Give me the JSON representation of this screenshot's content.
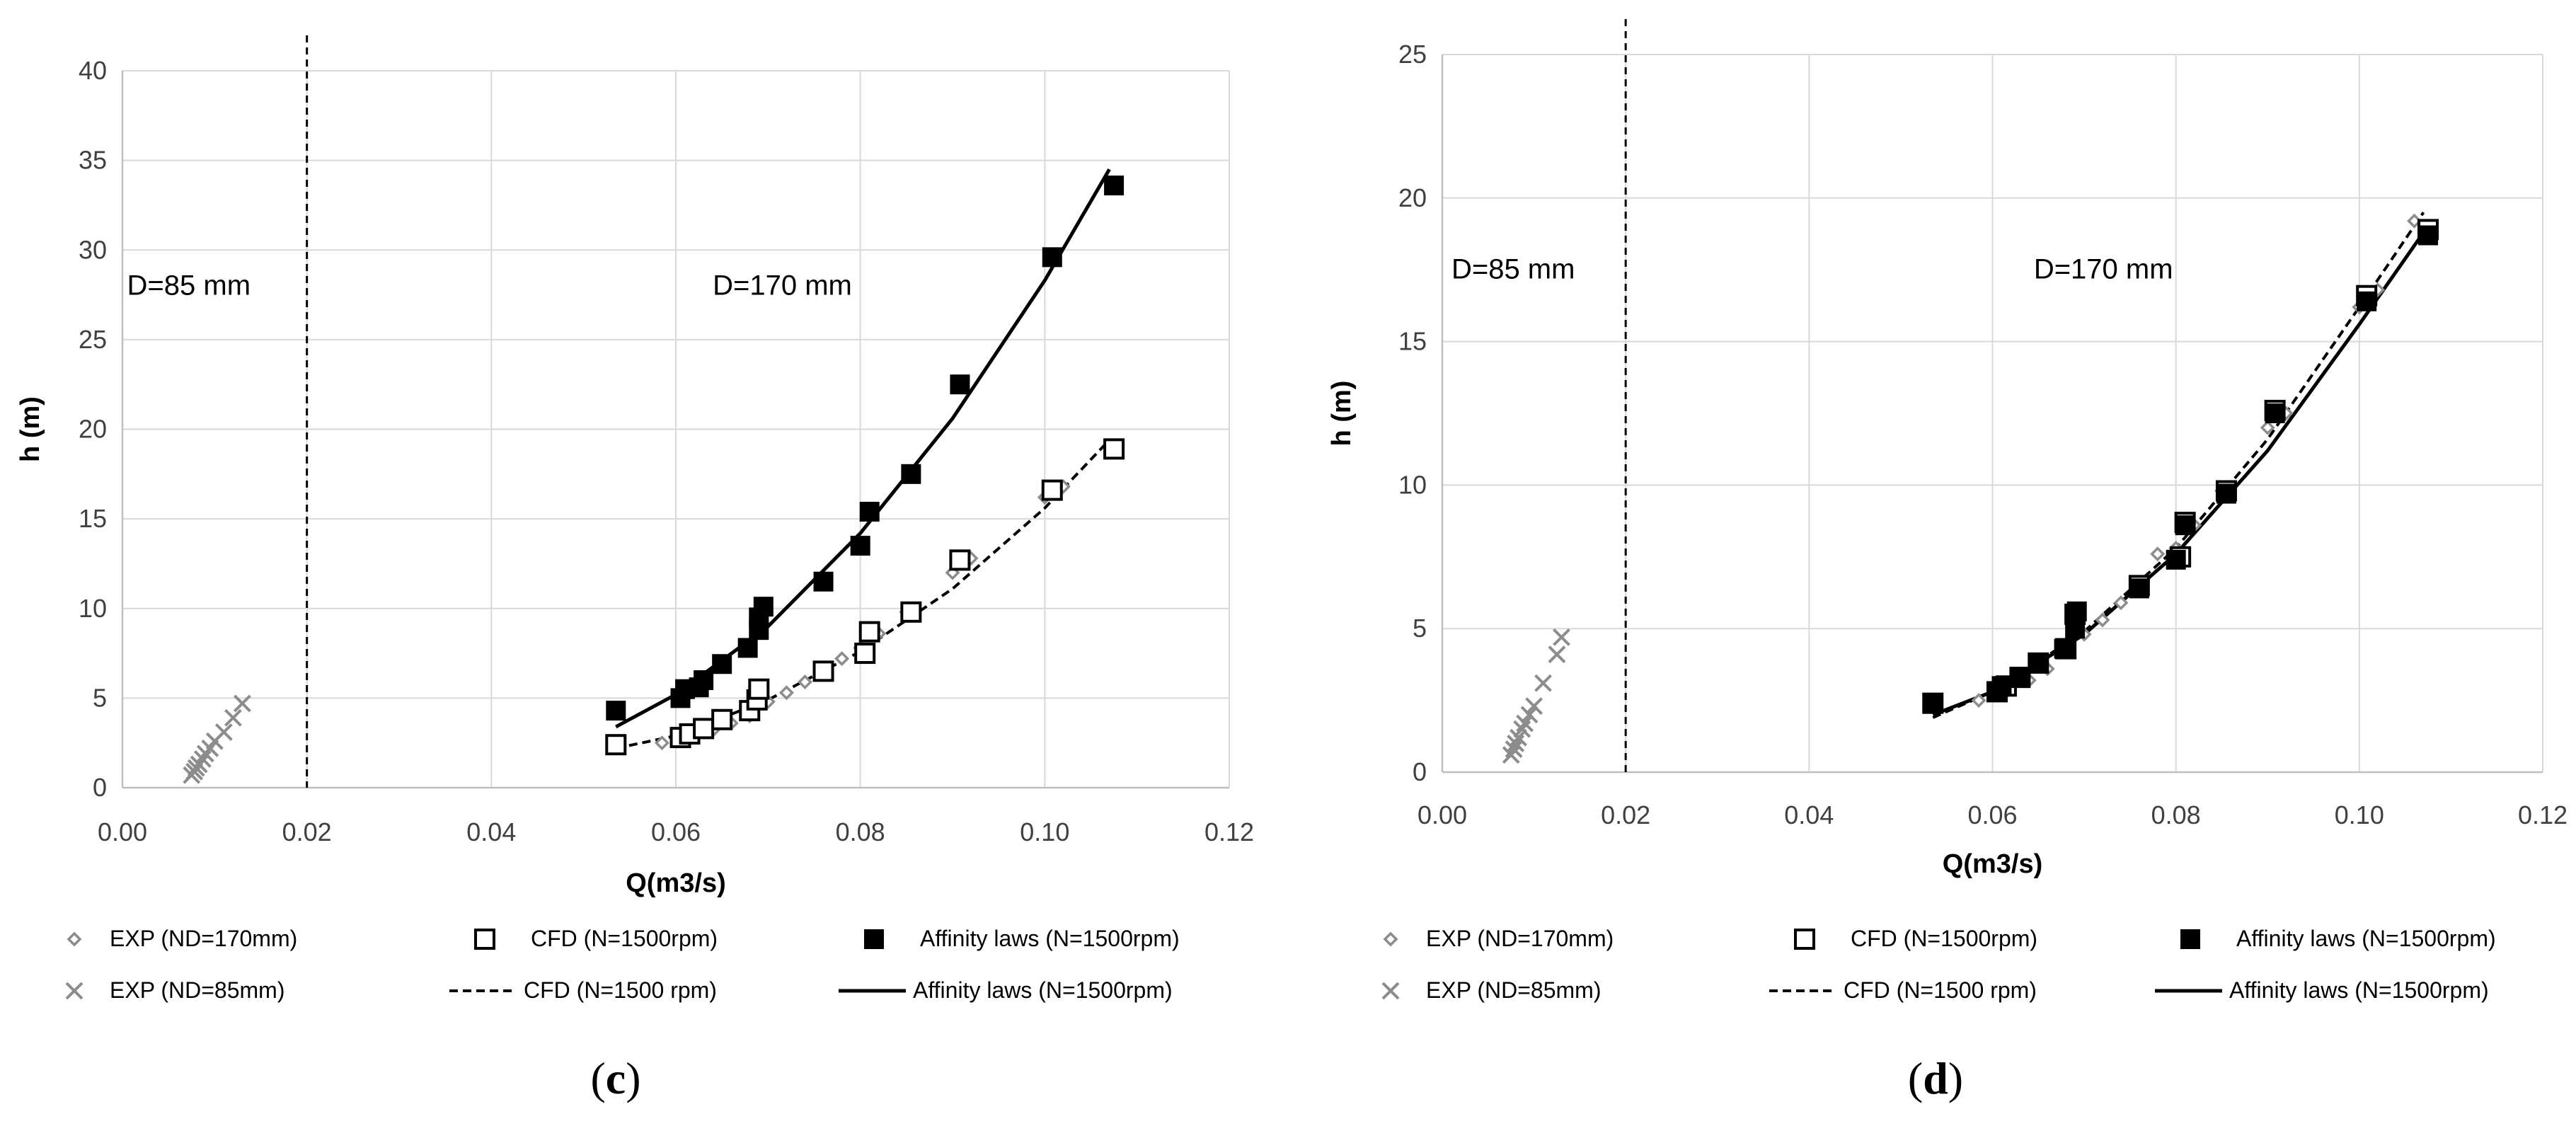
{
  "chart_data": [
    {
      "type": "scatter",
      "panel_label": "c",
      "xlabel": "Q(m3/s)",
      "ylabel": "h (m)",
      "xlim": [
        0,
        0.12
      ],
      "ylim": [
        0,
        40
      ],
      "xticks": [
        "0.00",
        "0.02",
        "0.04",
        "0.06",
        "0.08",
        "0.10",
        "0.12"
      ],
      "yticks": [
        "0",
        "5",
        "10",
        "15",
        "20",
        "25",
        "30",
        "35",
        "40"
      ],
      "vline_x": 0.02,
      "annotations": [
        {
          "text": "D=85 mm",
          "x": 0.0005,
          "y": 27.5
        },
        {
          "text": "D=170 mm",
          "x": 0.064,
          "y": 27.5
        }
      ],
      "series": [
        {
          "name": "EXP (ND=170mm)",
          "marker": "diamond",
          "x": [
            0.0585,
            0.0615,
            0.064,
            0.066,
            0.068,
            0.07,
            0.072,
            0.074,
            0.076,
            0.078,
            0.08,
            0.082,
            0.085,
            0.09,
            0.092,
            0.1,
            0.102
          ],
          "y": [
            2.5,
            2.8,
            3.2,
            3.6,
            4.0,
            4.8,
            5.3,
            5.9,
            6.5,
            7.2,
            7.8,
            8.6,
            9.8,
            12.0,
            12.8,
            16.2,
            16.8
          ]
        },
        {
          "name": "CFD (N=1500rpm)",
          "marker": "open-square",
          "x": [
            0.0535,
            0.0605,
            0.0615,
            0.063,
            0.065,
            0.068,
            0.0688,
            0.069,
            0.076,
            0.0805,
            0.081,
            0.0855,
            0.0908,
            0.1008,
            0.1075
          ],
          "y": [
            2.4,
            2.8,
            3.0,
            3.3,
            3.8,
            4.3,
            4.9,
            5.5,
            6.5,
            7.5,
            8.7,
            9.8,
            12.7,
            16.6,
            18.9
          ]
        },
        {
          "name": "Affinity laws (N=1500rpm)",
          "marker": "filled-square",
          "x": [
            0.0535,
            0.0605,
            0.061,
            0.0625,
            0.063,
            0.065,
            0.0678,
            0.069,
            0.069,
            0.0695,
            0.076,
            0.08,
            0.081,
            0.0855,
            0.0908,
            0.1008,
            0.1075
          ],
          "y": [
            4.3,
            5.0,
            5.5,
            5.6,
            6.0,
            6.9,
            7.8,
            8.8,
            9.5,
            10.1,
            11.5,
            13.5,
            15.4,
            17.5,
            22.5,
            29.6,
            33.6
          ]
        },
        {
          "name": "EXP (ND=85mm)",
          "marker": "x",
          "x": [
            0.0075,
            0.0078,
            0.008,
            0.0083,
            0.0087,
            0.009,
            0.0095,
            0.01,
            0.011,
            0.012,
            0.013
          ],
          "y": [
            0.7,
            0.9,
            1.1,
            1.3,
            1.6,
            1.9,
            2.2,
            2.6,
            3.1,
            3.9,
            4.7
          ]
        },
        {
          "name": "CFD (N=1500 rpm)",
          "line": "dashed",
          "x": [
            0.0535,
            0.06,
            0.07,
            0.08,
            0.09,
            0.1,
            0.107
          ],
          "y": [
            2.2,
            2.9,
            4.9,
            7.6,
            11.1,
            15.6,
            19.4
          ]
        },
        {
          "name": "Affinity laws (N=1500rpm)",
          "line": "solid",
          "x": [
            0.0535,
            0.06,
            0.07,
            0.08,
            0.09,
            0.1,
            0.107
          ],
          "y": [
            3.4,
            5.2,
            9.0,
            14.2,
            20.6,
            28.3,
            34.5
          ]
        }
      ]
    },
    {
      "type": "scatter",
      "panel_label": "d",
      "xlabel": "Q(m3/s)",
      "ylabel": "h (m)",
      "xlim": [
        0,
        0.12
      ],
      "ylim": [
        0,
        25
      ],
      "xticks": [
        "0.00",
        "0.02",
        "0.04",
        "0.06",
        "0.08",
        "0.10",
        "0.12"
      ],
      "yticks": [
        "0",
        "5",
        "10",
        "15",
        "20",
        "25"
      ],
      "vline_x": 0.02,
      "annotations": [
        {
          "text": "D=85 mm",
          "x": 0.001,
          "y": 17.2
        },
        {
          "text": "D=170 mm",
          "x": 0.0645,
          "y": 17.2
        }
      ],
      "series": [
        {
          "name": "EXP (ND=170mm)",
          "marker": "diamond",
          "x": [
            0.0585,
            0.0615,
            0.064,
            0.066,
            0.068,
            0.07,
            0.072,
            0.074,
            0.076,
            0.078,
            0.08,
            0.082,
            0.085,
            0.09,
            0.092,
            0.1,
            0.102,
            0.106
          ],
          "y": [
            2.5,
            2.8,
            3.2,
            3.6,
            4.4,
            4.8,
            5.3,
            5.9,
            6.5,
            7.6,
            7.8,
            8.6,
            9.8,
            12.0,
            12.5,
            16.2,
            16.8,
            19.2
          ]
        },
        {
          "name": "CFD (N=1500rpm)",
          "marker": "open-square",
          "x": [
            0.0535,
            0.0605,
            0.0615,
            0.063,
            0.065,
            0.068,
            0.069,
            0.076,
            0.0805,
            0.081,
            0.0855,
            0.0908,
            0.1008,
            0.1075
          ],
          "y": [
            2.4,
            2.8,
            3.0,
            3.3,
            3.8,
            4.3,
            5.5,
            6.5,
            7.5,
            8.7,
            9.8,
            12.6,
            16.6,
            18.9
          ]
        },
        {
          "name": "Affinity laws (N=1500rpm)",
          "marker": "filled-square",
          "x": [
            0.0535,
            0.0605,
            0.061,
            0.063,
            0.065,
            0.0678,
            0.069,
            0.0692,
            0.076,
            0.08,
            0.081,
            0.0855,
            0.0908,
            0.1008,
            0.1075
          ],
          "y": [
            2.4,
            2.8,
            3.0,
            3.3,
            3.8,
            4.3,
            5.0,
            5.6,
            6.4,
            7.4,
            8.6,
            9.7,
            12.5,
            16.4,
            18.7
          ]
        },
        {
          "name": "EXP (ND=85mm)",
          "marker": "x",
          "x": [
            0.0075,
            0.0078,
            0.008,
            0.0083,
            0.0087,
            0.009,
            0.0095,
            0.01,
            0.011,
            0.0125,
            0.013
          ],
          "y": [
            0.6,
            0.8,
            1.0,
            1.2,
            1.5,
            1.7,
            2.0,
            2.3,
            3.1,
            4.1,
            4.7
          ]
        },
        {
          "name": "CFD (N=1500 rpm)",
          "line": "dashed",
          "x": [
            0.0535,
            0.06,
            0.07,
            0.08,
            0.09,
            0.1,
            0.107
          ],
          "y": [
            1.9,
            2.8,
            4.9,
            7.8,
            11.6,
            16.2,
            19.5
          ]
        },
        {
          "name": "Affinity laws (N=1500rpm)",
          "line": "solid",
          "x": [
            0.0535,
            0.06,
            0.07,
            0.08,
            0.09,
            0.1,
            0.107
          ],
          "y": [
            2.0,
            2.8,
            4.8,
            7.6,
            11.2,
            15.6,
            18.8
          ]
        }
      ]
    }
  ],
  "legend": {
    "row1": [
      "EXP (ND=170mm)",
      "CFD (N=1500rpm)",
      "Affinity laws (N=1500rpm)"
    ],
    "row2": [
      "EXP (ND=85mm)",
      "CFD (N=1500 rpm)",
      "Affinity laws (N=1500rpm)"
    ]
  },
  "colors": {
    "exp": "#8c8c8c",
    "marker": "#000000",
    "grid": "#d9d9d9",
    "axis": "#bfbfbf"
  }
}
